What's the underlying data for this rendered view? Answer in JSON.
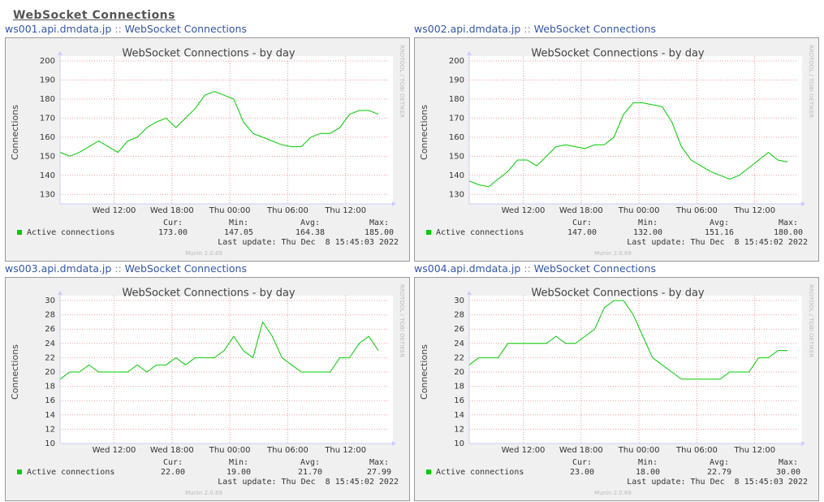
{
  "header": {
    "title": "WebSocket Connections"
  },
  "chart_data": [
    {
      "type": "line",
      "host": "ws001.api.dmdata.jp",
      "separator": "::",
      "link": "WebSocket Connections",
      "title": "WebSocket Connections - by day",
      "y_label": "Connections",
      "x": [
        0,
        1,
        2,
        3,
        4,
        5,
        6,
        7,
        8,
        9,
        10,
        11,
        12,
        13,
        14,
        15,
        16,
        17,
        18,
        19,
        20,
        21,
        22,
        23,
        24,
        25,
        26,
        27,
        28,
        29,
        30,
        31,
        32,
        33
      ],
      "xlim": [
        0,
        34
      ],
      "xticks": [
        {
          "value": 5.6,
          "label": "Wed 12:00"
        },
        {
          "value": 11.6,
          "label": "Wed 18:00"
        },
        {
          "value": 17.6,
          "label": "Thu 00:00"
        },
        {
          "value": 23.6,
          "label": "Thu 06:00"
        },
        {
          "value": 29.6,
          "label": "Thu 12:00"
        }
      ],
      "ylim": [
        125,
        200
      ],
      "yticks": [
        130,
        140,
        150,
        160,
        170,
        180,
        190,
        200
      ],
      "grid": true,
      "series": [
        {
          "name": "Active connections",
          "color": "#00cc00",
          "values": [
            152,
            150,
            152,
            155,
            158,
            155,
            152,
            158,
            160,
            165,
            168,
            170,
            165,
            170,
            175,
            182,
            184,
            182,
            180,
            168,
            162,
            160,
            158,
            156,
            155,
            155,
            160,
            162,
            162,
            165,
            172,
            174,
            174,
            172
          ]
        }
      ],
      "stats": {
        "labels": [
          "Cur:",
          "Min:",
          "Avg:",
          "Max:"
        ],
        "values": [
          {
            "value": 173,
            "label": "173.00"
          },
          {
            "value": 147.05,
            "label": "147.05"
          },
          {
            "value": 164.38,
            "label": "164.38"
          },
          {
            "value": 185,
            "label": "185.00"
          }
        ]
      },
      "last_update": "Last update: Thu Dec  8 15:45:03 2022",
      "footer": "Munin 2.0.69",
      "watermark": "RRDTOOL / TOBI OETIKER"
    },
    {
      "type": "line",
      "host": "ws002.api.dmdata.jp",
      "separator": "::",
      "link": "WebSocket Connections",
      "title": "WebSocket Connections - by day",
      "y_label": "Connections",
      "x": [
        0,
        1,
        2,
        3,
        4,
        5,
        6,
        7,
        8,
        9,
        10,
        11,
        12,
        13,
        14,
        15,
        16,
        17,
        18,
        19,
        20,
        21,
        22,
        23,
        24,
        25,
        26,
        27,
        28,
        29,
        30,
        31,
        32,
        33
      ],
      "xlim": [
        0,
        34
      ],
      "xticks": [
        {
          "value": 5.6,
          "label": "Wed 12:00"
        },
        {
          "value": 11.6,
          "label": "Wed 18:00"
        },
        {
          "value": 17.6,
          "label": "Thu 00:00"
        },
        {
          "value": 23.6,
          "label": "Thu 06:00"
        },
        {
          "value": 29.6,
          "label": "Thu 12:00"
        }
      ],
      "ylim": [
        125,
        200
      ],
      "yticks": [
        130,
        140,
        150,
        160,
        170,
        180,
        190,
        200
      ],
      "grid": true,
      "series": [
        {
          "name": "Active connections",
          "color": "#00cc00",
          "values": [
            137,
            135,
            134,
            138,
            142,
            148,
            148,
            145,
            150,
            155,
            156,
            155,
            154,
            156,
            156,
            160,
            172,
            178,
            178,
            177,
            176,
            168,
            155,
            148,
            145,
            142,
            140,
            138,
            140,
            144,
            148,
            152,
            148,
            147
          ]
        }
      ],
      "stats": {
        "labels": [
          "Cur:",
          "Min:",
          "Avg:",
          "Max:"
        ],
        "values": [
          {
            "value": 147,
            "label": "147.00"
          },
          {
            "value": 132,
            "label": "132.00"
          },
          {
            "value": 151.16,
            "label": "151.16"
          },
          {
            "value": 180,
            "label": "180.00"
          }
        ]
      },
      "last_update": "Last update: Thu Dec  8 15:45:02 2022",
      "footer": "Munin 2.0.69",
      "watermark": "RRDTOOL / TOBI OETIKER"
    },
    {
      "type": "line",
      "host": "ws003.api.dmdata.jp",
      "separator": "::",
      "link": "WebSocket Connections",
      "title": "WebSocket Connections - by day",
      "y_label": "Connections",
      "x": [
        0,
        1,
        2,
        3,
        4,
        5,
        6,
        7,
        8,
        9,
        10,
        11,
        12,
        13,
        14,
        15,
        16,
        17,
        18,
        19,
        20,
        21,
        22,
        23,
        24,
        25,
        26,
        27,
        28,
        29,
        30,
        31,
        32,
        33
      ],
      "xlim": [
        0,
        34
      ],
      "xticks": [
        {
          "value": 5.6,
          "label": "Wed 12:00"
        },
        {
          "value": 11.6,
          "label": "Wed 18:00"
        },
        {
          "value": 17.6,
          "label": "Thu 00:00"
        },
        {
          "value": 23.6,
          "label": "Thu 06:00"
        },
        {
          "value": 29.6,
          "label": "Thu 12:00"
        }
      ],
      "ylim": [
        10,
        30
      ],
      "yticks": [
        10,
        12,
        14,
        16,
        18,
        20,
        22,
        24,
        26,
        28,
        30
      ],
      "grid": true,
      "series": [
        {
          "name": "Active connections",
          "color": "#00cc00",
          "values": [
            19,
            20,
            20,
            21,
            20,
            20,
            20,
            20,
            21,
            20,
            21,
            21,
            22,
            21,
            22,
            22,
            22,
            23,
            25,
            23,
            22,
            27,
            25,
            22,
            21,
            20,
            20,
            20,
            20,
            22,
            22,
            24,
            25,
            23
          ]
        }
      ],
      "stats": {
        "labels": [
          "Cur:",
          "Min:",
          "Avg:",
          "Max:"
        ],
        "values": [
          {
            "value": 22,
            "label": "22.00"
          },
          {
            "value": 19,
            "label": "19.00"
          },
          {
            "value": 21.7,
            "label": "21.70"
          },
          {
            "value": 27.99,
            "label": "27.99"
          }
        ]
      },
      "last_update": "Last update: Thu Dec  8 15:45:02 2022",
      "footer": "Munin 2.0.69",
      "watermark": "RRDTOOL / TOBI OETIKER"
    },
    {
      "type": "line",
      "host": "ws004.api.dmdata.jp",
      "separator": "::",
      "link": "WebSocket Connections",
      "title": "WebSocket Connections - by day",
      "y_label": "Connections",
      "x": [
        0,
        1,
        2,
        3,
        4,
        5,
        6,
        7,
        8,
        9,
        10,
        11,
        12,
        13,
        14,
        15,
        16,
        17,
        18,
        19,
        20,
        21,
        22,
        23,
        24,
        25,
        26,
        27,
        28,
        29,
        30,
        31,
        32,
        33
      ],
      "xlim": [
        0,
        34
      ],
      "xticks": [
        {
          "value": 5.6,
          "label": "Wed 12:00"
        },
        {
          "value": 11.6,
          "label": "Wed 18:00"
        },
        {
          "value": 17.6,
          "label": "Thu 00:00"
        },
        {
          "value": 23.6,
          "label": "Thu 06:00"
        },
        {
          "value": 29.6,
          "label": "Thu 12:00"
        }
      ],
      "ylim": [
        10,
        30
      ],
      "yticks": [
        10,
        12,
        14,
        16,
        18,
        20,
        22,
        24,
        26,
        28,
        30
      ],
      "grid": true,
      "series": [
        {
          "name": "Active connections",
          "color": "#00cc00",
          "values": [
            21,
            22,
            22,
            22,
            24,
            24,
            24,
            24,
            24,
            25,
            24,
            24,
            25,
            26,
            29,
            30,
            30,
            28,
            25,
            22,
            21,
            20,
            19,
            19,
            19,
            19,
            19,
            20,
            20,
            20,
            22,
            22,
            23,
            23
          ]
        }
      ],
      "stats": {
        "labels": [
          "Cur:",
          "Min:",
          "Avg:",
          "Max:"
        ],
        "values": [
          {
            "value": 23,
            "label": "23.00"
          },
          {
            "value": 18,
            "label": "18.00"
          },
          {
            "value": 22.79,
            "label": "22.79"
          },
          {
            "value": 30,
            "label": "30.00"
          }
        ]
      },
      "last_update": "Last update: Thu Dec  8 15:45:03 2022",
      "footer": "Munin 2.0.69",
      "watermark": "RRDTOOL / TOBI OETIKER"
    }
  ]
}
